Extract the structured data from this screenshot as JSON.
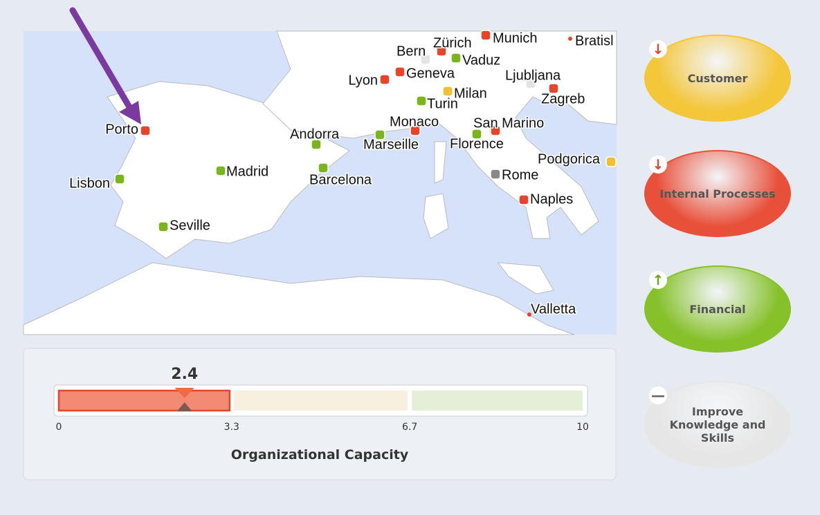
{
  "map": {
    "cities": [
      {
        "label": "Porto",
        "color": "#e8442a"
      },
      {
        "label": "Lisbon",
        "color": "#7ab51d"
      },
      {
        "label": "Madrid",
        "color": "#7ab51d"
      },
      {
        "label": "Seville",
        "color": "#7ab51d"
      },
      {
        "label": "Andorra",
        "color": "#7ab51d"
      },
      {
        "label": "Barcelona",
        "color": "#7ab51d"
      },
      {
        "label": "Lyon",
        "color": "#e8442a"
      },
      {
        "label": "Geneva",
        "color": "#e8442a"
      },
      {
        "label": "Bern",
        "color": "#e4e4e4"
      },
      {
        "label": "Zürich",
        "color": "#e8442a"
      },
      {
        "label": "Munich",
        "color": "#e8442a"
      },
      {
        "label": "Vaduz",
        "color": "#7ab51d"
      },
      {
        "label": "Milan",
        "color": "#f0c030"
      },
      {
        "label": "Turin",
        "color": "#7ab51d"
      },
      {
        "label": "Monaco",
        "color": "#e8442a"
      },
      {
        "label": "Marseille",
        "color": "#7ab51d"
      },
      {
        "label": "Florence",
        "color": "#7ab51d"
      },
      {
        "label": "San Marino",
        "color": "#e8442a"
      },
      {
        "label": "Rome",
        "color": "#888888"
      },
      {
        "label": "Naples",
        "color": "#e8442a"
      },
      {
        "label": "Ljubljana",
        "color": "#e4e4e4"
      },
      {
        "label": "Zagreb",
        "color": "#e8442a"
      },
      {
        "label": "Podgorica",
        "color": "#f0c030"
      },
      {
        "label": "Valletta",
        "color": "#e8442a"
      },
      {
        "label": "Bratisl",
        "color": "#e8442a"
      }
    ]
  },
  "gauge": {
    "value": 2.4,
    "ticks": [
      0,
      3.3,
      6.7,
      10
    ],
    "label": "Organizational Capacity",
    "colors": [
      "#f28a74",
      "#f7f0df",
      "#e5efd8"
    ],
    "active_color": "#e8442a"
  },
  "perspectives": [
    {
      "label": "Customer",
      "trend": "down",
      "color": "#f4c63a"
    },
    {
      "label": "Internal Processes",
      "trend": "down",
      "color": "#e8503a"
    },
    {
      "label": "Financial",
      "trend": "up",
      "color": "#86c12a"
    },
    {
      "label": "Improve Knowledge and Skills",
      "trend": "flat",
      "color": "#e6e6e6"
    }
  ]
}
